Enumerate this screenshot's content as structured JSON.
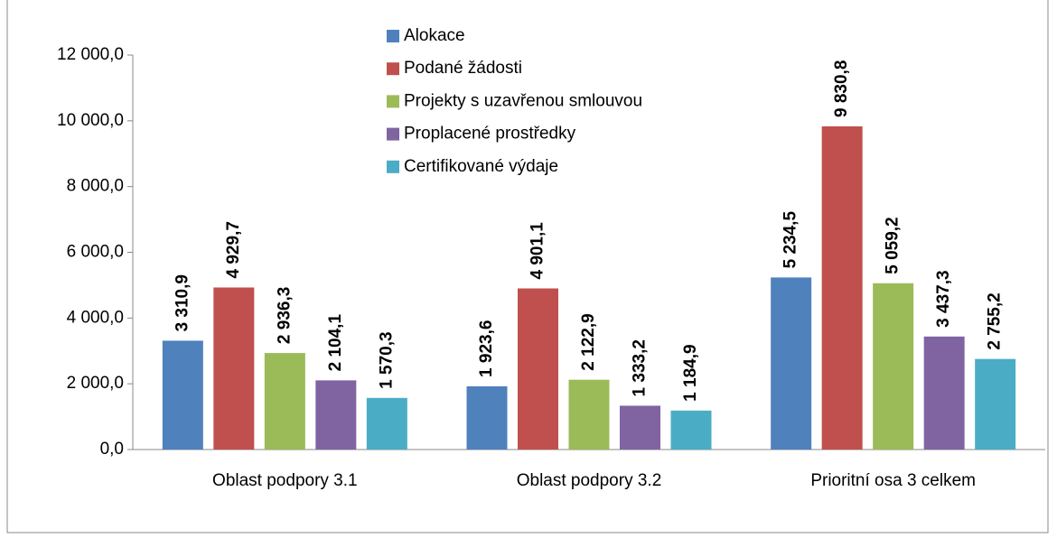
{
  "chart_data": {
    "type": "bar",
    "categories": [
      "Oblast podpory 3.1",
      "Oblast podpory 3.2",
      "Prioritní osa 3 celkem"
    ],
    "series": [
      {
        "name": "Alokace",
        "color": "#4f81bd",
        "values": [
          3310.9,
          1923.6,
          5234.5
        ],
        "value_labels": [
          "3 310,9",
          "1 923,6",
          "5 234,5"
        ]
      },
      {
        "name": "Podané žádosti",
        "color": "#c0504d",
        "values": [
          4929.7,
          4901.1,
          9830.8
        ],
        "value_labels": [
          "4 929,7",
          "4 901,1",
          "9 830,8"
        ]
      },
      {
        "name": "Projekty s uzavřenou smlouvou",
        "color": "#9bbb59",
        "values": [
          2936.3,
          2122.9,
          5059.2
        ],
        "value_labels": [
          "2 936,3",
          "2 122,9",
          "5 059,2"
        ]
      },
      {
        "name": "Proplacené prostředky",
        "color": "#8064a2",
        "values": [
          2104.1,
          1333.2,
          3437.3
        ],
        "value_labels": [
          "2 104,1",
          "1 333,2",
          "3 437,3"
        ]
      },
      {
        "name": "Certifikované výdaje",
        "color": "#4bacc6",
        "values": [
          1570.3,
          1184.9,
          2755.2
        ],
        "value_labels": [
          "1 570,3",
          "1 184,9",
          "2 755,2"
        ]
      }
    ],
    "ylim": [
      0,
      12000
    ],
    "yticks": [
      {
        "value": 0,
        "label": "0,0"
      },
      {
        "value": 2000,
        "label": "2 000,0"
      },
      {
        "value": 4000,
        "label": "4 000,0"
      },
      {
        "value": 6000,
        "label": "6 000,0"
      },
      {
        "value": 8000,
        "label": "8 000,0"
      },
      {
        "value": 10000,
        "label": "10 000,0"
      },
      {
        "value": 12000,
        "label": "12 000,0"
      }
    ],
    "grid": false,
    "legend": "top"
  }
}
